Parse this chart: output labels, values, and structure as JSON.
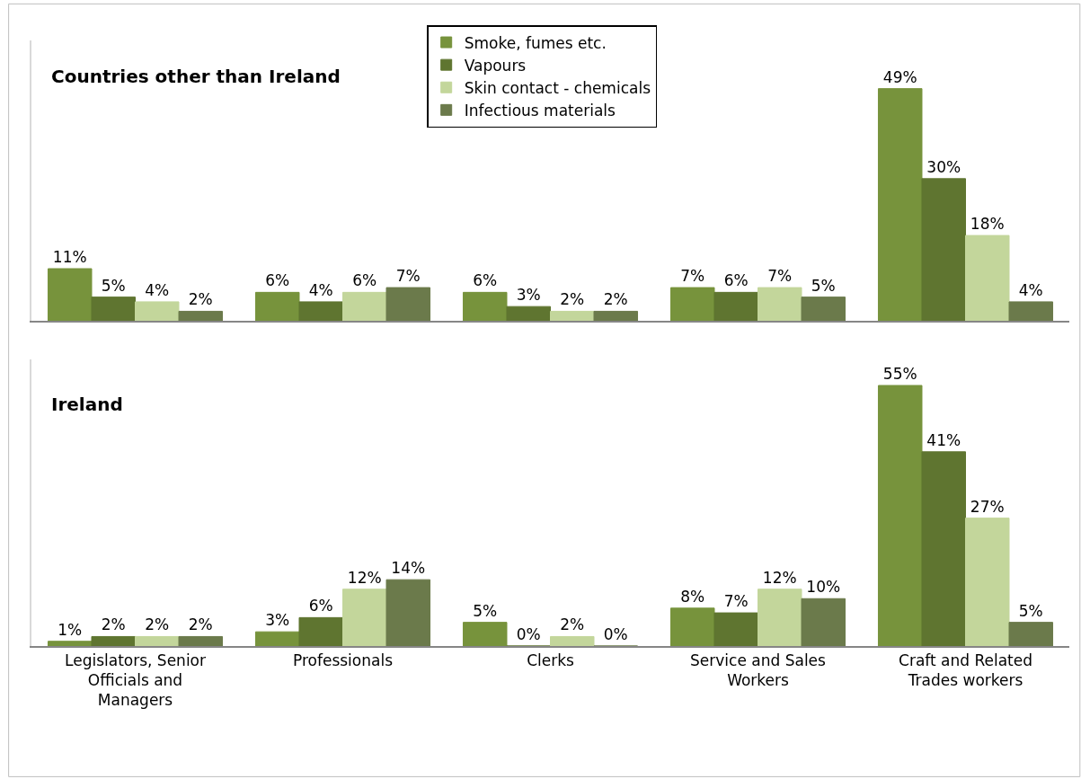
{
  "chart_data": [
    {
      "type": "bar",
      "title": "Countries other than Ireland",
      "categories": [
        "Legislators, Senior Officials and Managers",
        "Professionals",
        "Clerks",
        "Service and Sales Workers",
        "Craft and Related Trades workers"
      ],
      "legend": "top",
      "tick_labels": false,
      "series": [
        {
          "name": "Smoke, fumes etc.",
          "color": "#77933c",
          "values": [
            11,
            6,
            6,
            7,
            49
          ],
          "value_labels": [
            "11%",
            "6%",
            "6%",
            "7%",
            "49%"
          ]
        },
        {
          "name": "Vapours",
          "color": "#5f7530",
          "values": [
            5,
            4,
            3,
            6,
            30
          ],
          "value_labels": [
            "5%",
            "4%",
            "3%",
            "6%",
            "30%"
          ]
        },
        {
          "name": "Skin contact - chemicals",
          "color": "#c3d69b",
          "values": [
            4,
            6,
            2,
            7,
            18
          ],
          "value_labels": [
            "4%",
            "6%",
            "2%",
            "7%",
            "18%"
          ]
        },
        {
          "name": "Infectious materials",
          "color": "#6b7a4b",
          "values": [
            2,
            7,
            2,
            5,
            4
          ],
          "value_labels": [
            "2%",
            "7%",
            "2%",
            "5%",
            "4%"
          ]
        }
      ]
    },
    {
      "type": "bar",
      "title": "Ireland",
      "categories": [
        "Legislators, Senior Officials and Managers",
        "Professionals",
        "Clerks",
        "Service and Sales Workers",
        "Craft and Related Trades workers"
      ],
      "tick_labels": "x",
      "series": [
        {
          "color": "#77933c",
          "values": [
            1,
            3,
            5,
            8,
            55
          ],
          "value_labels": [
            "1%",
            "3%",
            "5%",
            "8%",
            "55%"
          ]
        },
        {
          "color": "#5f7530",
          "values": [
            2,
            6,
            0,
            7,
            41
          ],
          "value_labels": [
            "2%",
            "6%",
            "0%",
            "7%",
            "41%"
          ]
        },
        {
          "color": "#c3d69b",
          "values": [
            2,
            12,
            2,
            12,
            27
          ],
          "value_labels": [
            "2%",
            "12%",
            "2%",
            "12%",
            "27%"
          ]
        },
        {
          "color": "#6b7a4b",
          "values": [
            2,
            14,
            0,
            10,
            5
          ],
          "value_labels": [
            "2%",
            "14%",
            "0%",
            "10%",
            "5%"
          ]
        }
      ]
    }
  ]
}
